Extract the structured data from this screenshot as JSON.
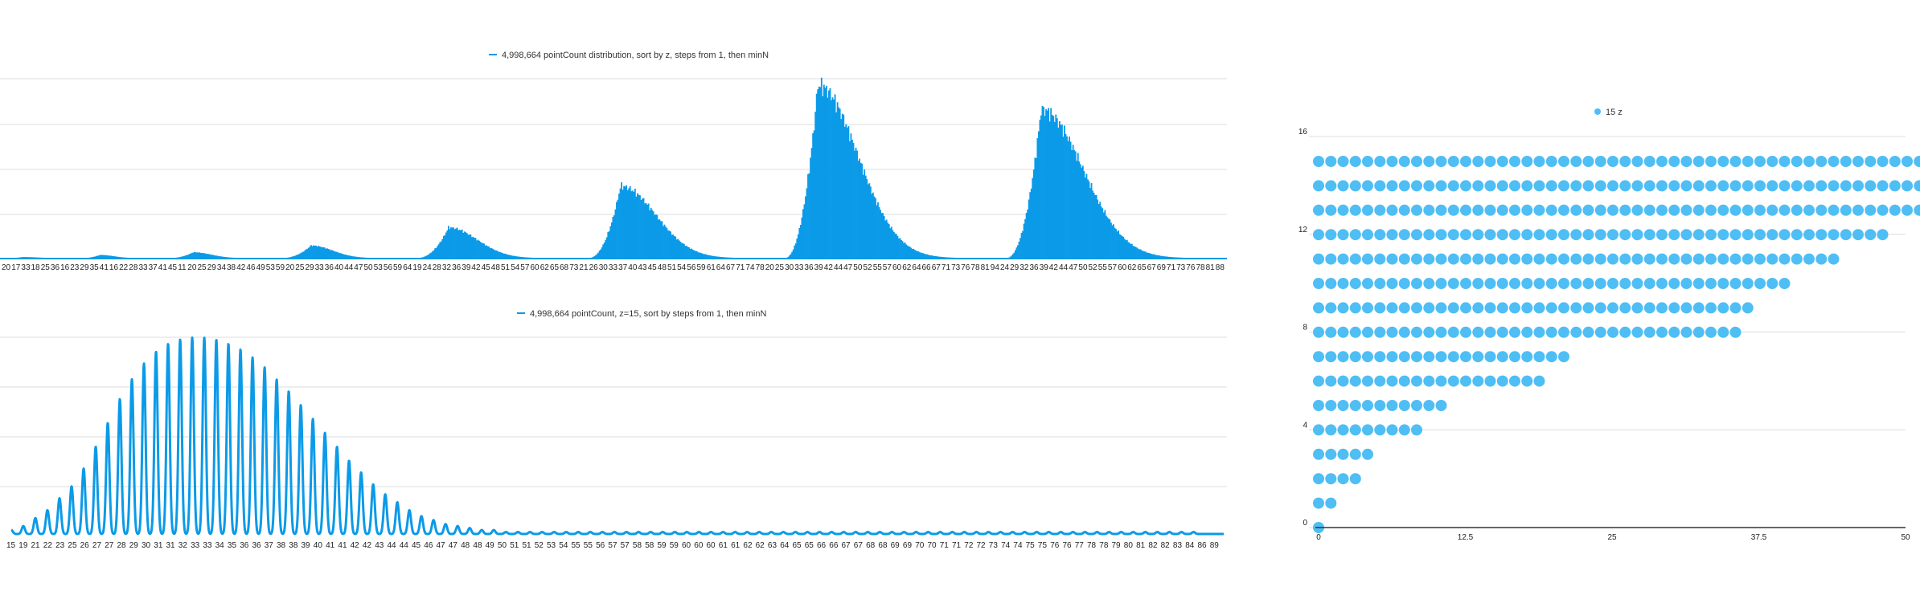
{
  "colors": {
    "series": "#0a9ae8",
    "dots": "#4fbef4",
    "axis": "#333333",
    "grid": "#dcdcdc"
  },
  "chart_data": [
    {
      "type": "bar",
      "legend": "4,998,664 pointCount distribution, sort by z, steps from 1, then minN",
      "legend_placement": "top-center",
      "grid": true,
      "x_tick_labels": [
        "20",
        "17",
        "33",
        "18",
        "25",
        "36",
        "16",
        "23",
        "29",
        "35",
        "41",
        "16",
        "22",
        "28",
        "33",
        "37",
        "41",
        "45",
        "11",
        "20",
        "25",
        "29",
        "34",
        "38",
        "42",
        "46",
        "49",
        "53",
        "59",
        "20",
        "25",
        "29",
        "33",
        "36",
        "40",
        "44",
        "47",
        "50",
        "53",
        "56",
        "59",
        "64",
        "19",
        "24",
        "28",
        "32",
        "36",
        "39",
        "42",
        "45",
        "48",
        "51",
        "54",
        "57",
        "60",
        "62",
        "65",
        "68",
        "73",
        "21",
        "26",
        "30",
        "33",
        "37",
        "40",
        "43",
        "45",
        "48",
        "51",
        "54",
        "56",
        "59",
        "61",
        "64",
        "67",
        "71",
        "74",
        "78",
        "20",
        "25",
        "30",
        "33",
        "36",
        "39",
        "42",
        "44",
        "47",
        "50",
        "52",
        "55",
        "57",
        "60",
        "62",
        "64",
        "66",
        "67",
        "71",
        "73",
        "76",
        "78",
        "81",
        "94",
        "24",
        "29",
        "32",
        "36",
        "39",
        "42",
        "44",
        "47",
        "50",
        "52",
        "55",
        "57",
        "60",
        "62",
        "65",
        "67",
        "69",
        "71",
        "73",
        "76",
        "78",
        "81",
        "88"
      ],
      "groups": [
        {
          "peak": 1.2,
          "rise": 0.3,
          "fall": 0.5,
          "start": 0.0,
          "end": 0.06
        },
        {
          "peak": 3.5,
          "rise": 0.3,
          "fall": 0.4,
          "start": 0.06,
          "end": 0.13
        },
        {
          "peak": 6.5,
          "rise": 0.3,
          "fall": 0.4,
          "start": 0.13,
          "end": 0.22
        },
        {
          "peak": 14.0,
          "rise": 0.3,
          "fall": 0.4,
          "start": 0.22,
          "end": 0.33
        },
        {
          "peak": 34.0,
          "rise": 0.25,
          "fall": 0.42,
          "start": 0.33,
          "end": 0.47
        },
        {
          "peak": 80.0,
          "rise": 0.22,
          "fall": 0.45,
          "start": 0.47,
          "end": 0.63
        },
        {
          "peak": 192.0,
          "rise": 0.2,
          "fall": 0.45,
          "start": 0.63,
          "end": 0.81
        },
        {
          "peak": 165.0,
          "rise": 0.2,
          "fall": 0.45,
          "start": 0.81,
          "end": 1.0
        }
      ],
      "ylim": [
        0,
        200
      ]
    },
    {
      "type": "line",
      "legend": "4,998,664 pointCount, z=15, sort by steps from 1, then minN",
      "legend_placement": "top-center",
      "grid": true,
      "x_tick_labels": [
        "15",
        "19",
        "21",
        "22",
        "23",
        "25",
        "26",
        "27",
        "27",
        "28",
        "29",
        "30",
        "31",
        "31",
        "32",
        "33",
        "33",
        "34",
        "35",
        "36",
        "36",
        "37",
        "38",
        "38",
        "39",
        "40",
        "41",
        "41",
        "42",
        "42",
        "43",
        "44",
        "44",
        "45",
        "46",
        "47",
        "47",
        "48",
        "48",
        "49",
        "50",
        "51",
        "51",
        "52",
        "53",
        "54",
        "55",
        "55",
        "56",
        "57",
        "57",
        "58",
        "58",
        "59",
        "59",
        "60",
        "60",
        "60",
        "61",
        "61",
        "62",
        "62",
        "63",
        "64",
        "65",
        "65",
        "66",
        "66",
        "67",
        "67",
        "68",
        "68",
        "69",
        "69",
        "70",
        "70",
        "71",
        "71",
        "72",
        "72",
        "73",
        "74",
        "74",
        "75",
        "75",
        "76",
        "76",
        "77",
        "78",
        "78",
        "79",
        "80",
        "81",
        "82",
        "82",
        "83",
        "84",
        "86",
        "89"
      ],
      "peaks": [
        2,
        4,
        8,
        12,
        18,
        24,
        33,
        44,
        56,
        68,
        78,
        86,
        92,
        96,
        98,
        99,
        99,
        98,
        96,
        93,
        89,
        84,
        78,
        72,
        65,
        58,
        51,
        44,
        37,
        31,
        25,
        20,
        16,
        12,
        9,
        7,
        5,
        4,
        3,
        2,
        2,
        1,
        1,
        1,
        1,
        1,
        1,
        1,
        1,
        1,
        1,
        1,
        1,
        1,
        1,
        1,
        1,
        1,
        1,
        1,
        1,
        1,
        1,
        1,
        1,
        1,
        1,
        1,
        1,
        1,
        1,
        1,
        1,
        1,
        1,
        1,
        1,
        1,
        1,
        1,
        1,
        1,
        1,
        1,
        1,
        1,
        1,
        1,
        1,
        1,
        1,
        1,
        1,
        1,
        1,
        1,
        1,
        1,
        1
      ],
      "ylim": [
        0,
        100
      ]
    },
    {
      "type": "scatter",
      "legend": "15 z",
      "legend_placement": "top-center",
      "grid": true,
      "y_ticks": [
        "0",
        "4",
        "8",
        "12",
        "16"
      ],
      "x_ticks": [
        "0",
        "12.5",
        "25",
        "37.5",
        "50"
      ],
      "xlim": [
        0,
        50
      ],
      "ylim": [
        0,
        16
      ],
      "rows": [
        {
          "y": 0,
          "count": 1
        },
        {
          "y": 1,
          "count": 2
        },
        {
          "y": 2,
          "count": 4
        },
        {
          "y": 3,
          "count": 5
        },
        {
          "y": 4,
          "count": 9
        },
        {
          "y": 5,
          "count": 11
        },
        {
          "y": 6,
          "count": 19
        },
        {
          "y": 7,
          "count": 21
        },
        {
          "y": 8,
          "count": 35
        },
        {
          "y": 9,
          "count": 36
        },
        {
          "y": 10,
          "count": 39
        },
        {
          "y": 11,
          "count": 43
        },
        {
          "y": 12,
          "count": 47
        },
        {
          "y": 13,
          "count": 51
        },
        {
          "y": 14,
          "count": 54
        },
        {
          "y": 15,
          "count": 54
        }
      ]
    }
  ]
}
